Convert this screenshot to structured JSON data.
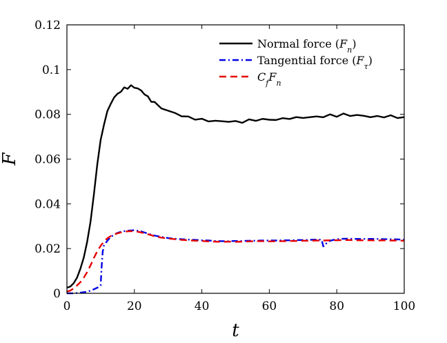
{
  "chart_data": {
    "type": "line",
    "title": "",
    "xlabel": "t",
    "ylabel": "F",
    "xlim": [
      0,
      100
    ],
    "ylim": [
      0,
      0.12
    ],
    "xticks": [
      0,
      20,
      40,
      60,
      80,
      100
    ],
    "xtick_labels": [
      "0",
      "20",
      "40",
      "60",
      "80",
      "100"
    ],
    "yticks": [
      0,
      0.02,
      0.04,
      0.06,
      0.08,
      0.1,
      0.12
    ],
    "ytick_labels": [
      "0",
      "0.02",
      "0.04",
      "0.06",
      "0.08",
      "0.1",
      "0.12"
    ],
    "grid": false,
    "legend_position": "top-right",
    "series": [
      {
        "name": "Normal force (F_n)",
        "label_main": "Normal force (",
        "label_symbol": "F",
        "label_sub": "n",
        "label_close": ")",
        "color": "#000000",
        "style": "solid",
        "x": [
          0,
          1,
          2,
          3,
          4,
          5,
          6,
          7,
          8,
          9,
          10,
          11,
          12,
          13,
          14,
          15,
          16,
          17,
          18,
          19,
          20,
          21,
          22,
          23,
          24,
          25,
          26,
          28,
          30,
          32,
          34,
          36,
          38,
          40,
          42,
          44,
          46,
          48,
          50,
          52,
          54,
          56,
          58,
          60,
          62,
          64,
          66,
          68,
          70,
          72,
          74,
          76,
          78,
          80,
          82,
          84,
          86,
          88,
          90,
          92,
          94,
          96,
          98,
          100
        ],
        "values": [
          0.0025,
          0.003,
          0.0045,
          0.007,
          0.011,
          0.016,
          0.023,
          0.032,
          0.044,
          0.058,
          0.068,
          0.076,
          0.081,
          0.085,
          0.0875,
          0.089,
          0.0905,
          0.0915,
          0.092,
          0.0925,
          0.0922,
          0.0915,
          0.0905,
          0.0893,
          0.0875,
          0.0862,
          0.085,
          0.083,
          0.0815,
          0.0805,
          0.0795,
          0.0785,
          0.0782,
          0.0775,
          0.0772,
          0.077,
          0.0768,
          0.077,
          0.0765,
          0.0768,
          0.0772,
          0.0775,
          0.0778,
          0.0775,
          0.0778,
          0.0778,
          0.0785,
          0.0782,
          0.0788,
          0.0785,
          0.079,
          0.079,
          0.0795,
          0.0795,
          0.0798,
          0.0797,
          0.0795,
          0.0793,
          0.079,
          0.0788,
          0.0792,
          0.079,
          0.0788,
          0.0785
        ]
      },
      {
        "name": "Tangential force (F_τ)",
        "label_main": "Tangential force (",
        "label_symbol": "F",
        "label_sub": "τ",
        "label_close": ")",
        "color": "#0000e6",
        "style": "dashdot",
        "x": [
          0,
          2,
          4,
          6,
          7,
          8,
          9,
          10,
          10.3,
          10.6,
          11,
          12,
          13,
          14,
          15,
          16,
          17,
          18,
          19,
          20,
          21,
          22,
          23,
          24,
          25,
          26,
          28,
          30,
          32,
          34,
          36,
          38,
          40,
          42,
          44,
          46,
          48,
          50,
          52,
          54,
          56,
          58,
          60,
          62,
          64,
          66,
          68,
          70,
          72,
          74,
          75.5,
          76,
          76.5,
          77,
          78,
          80,
          82,
          84,
          86,
          88,
          90,
          92,
          94,
          96,
          98,
          100
        ],
        "values": [
          0.0,
          0.0,
          0.0003,
          0.0007,
          0.0012,
          0.0018,
          0.0025,
          0.0035,
          0.012,
          0.0185,
          0.0215,
          0.0235,
          0.0252,
          0.0262,
          0.027,
          0.0275,
          0.0278,
          0.028,
          0.0281,
          0.0282,
          0.028,
          0.0277,
          0.0272,
          0.0267,
          0.0262,
          0.0258,
          0.0252,
          0.0247,
          0.0244,
          0.0242,
          0.024,
          0.0239,
          0.0237,
          0.0236,
          0.0234,
          0.0233,
          0.0233,
          0.0234,
          0.0234,
          0.0235,
          0.0235,
          0.0236,
          0.0236,
          0.0236,
          0.0237,
          0.0237,
          0.0238,
          0.0238,
          0.0239,
          0.024,
          0.024,
          0.021,
          0.0212,
          0.0225,
          0.0235,
          0.0242,
          0.0244,
          0.0244,
          0.0243,
          0.0243,
          0.0243,
          0.0243,
          0.0242,
          0.0242,
          0.0241,
          0.024
        ]
      },
      {
        "name": "C_f F_n",
        "label_main": "",
        "label_symbol": "C",
        "label_sub": "f",
        "label_close": "F",
        "label_sub2": "n",
        "color": "#e60000",
        "style": "dashed",
        "x": [
          0,
          1,
          2,
          3,
          4,
          5,
          6,
          7,
          8,
          9,
          10,
          11,
          12,
          13,
          14,
          15,
          16,
          17,
          18,
          19,
          20,
          21,
          22,
          23,
          24,
          25,
          26,
          28,
          30,
          32,
          34,
          36,
          38,
          40,
          42,
          44,
          46,
          48,
          50,
          52,
          54,
          56,
          58,
          60,
          62,
          64,
          66,
          68,
          70,
          72,
          74,
          76,
          78,
          80,
          82,
          84,
          86,
          88,
          90,
          92,
          94,
          96,
          98,
          100
        ],
        "values": [
          0.0008,
          0.0012,
          0.0022,
          0.0035,
          0.005,
          0.007,
          0.0095,
          0.0125,
          0.0158,
          0.0188,
          0.0212,
          0.0232,
          0.0246,
          0.0256,
          0.0263,
          0.0268,
          0.0272,
          0.0275,
          0.0277,
          0.0278,
          0.0277,
          0.0275,
          0.0272,
          0.0268,
          0.0264,
          0.026,
          0.0255,
          0.0249,
          0.0245,
          0.0242,
          0.0239,
          0.0237,
          0.0235,
          0.0234,
          0.0232,
          0.0231,
          0.023,
          0.0231,
          0.023,
          0.0231,
          0.0232,
          0.0233,
          0.0233,
          0.0232,
          0.0233,
          0.0233,
          0.0234,
          0.0234,
          0.0235,
          0.0235,
          0.0236,
          0.0236,
          0.0237,
          0.0237,
          0.0238,
          0.0238,
          0.0237,
          0.0237,
          0.0237,
          0.0236,
          0.0237,
          0.0236,
          0.0236,
          0.0235
        ]
      }
    ]
  }
}
